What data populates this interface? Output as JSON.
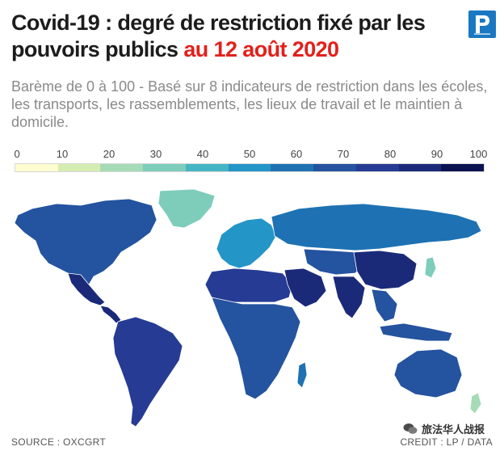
{
  "header": {
    "title_main": "Covid-19 : degré de restriction fixé par les pouvoirs publics",
    "title_date": "au 12 août 2020",
    "subtitle": "Barème de 0 à 100 - Basé sur 8 indicateurs de restriction dans les écoles, les transports, les rassemblements, les lieux de travail et le maintien à domicile."
  },
  "legend": {
    "ticks": [
      "0",
      "10",
      "20",
      "30",
      "40",
      "50",
      "60",
      "70",
      "80",
      "90",
      "100"
    ],
    "colors": [
      "#fdfdd0",
      "#d6edb1",
      "#a6dbb7",
      "#7ecdbb",
      "#45b5c4",
      "#2395c6",
      "#1e72b3",
      "#24539f",
      "#263b93",
      "#1b2a78",
      "#0b1350"
    ]
  },
  "colors": {
    "title_accent": "#e3201b",
    "logo_blue": "#1a78c2",
    "ocean": "#ffffff",
    "no_data": "#e8e8e8"
  },
  "footer": {
    "source": "SOURCE : OXCGRT",
    "credit": "CREDIT : LP / DATA",
    "watermark": "旅法华人战报"
  },
  "map": {
    "type": "choropleth",
    "scale": [
      0,
      100
    ],
    "regions": [
      {
        "name": "north-america",
        "value": 72
      },
      {
        "name": "greenland",
        "value": 35
      },
      {
        "name": "mexico",
        "value": 82
      },
      {
        "name": "central-america",
        "value": 88
      },
      {
        "name": "south-america",
        "value": 80
      },
      {
        "name": "europe",
        "value": 50
      },
      {
        "name": "russia",
        "value": 62
      },
      {
        "name": "north-africa",
        "value": 78
      },
      {
        "name": "sub-saharan-africa",
        "value": 72
      },
      {
        "name": "madagascar",
        "value": 62
      },
      {
        "name": "middle-east",
        "value": 82
      },
      {
        "name": "central-asia",
        "value": 66
      },
      {
        "name": "india",
        "value": 90
      },
      {
        "name": "china",
        "value": 86
      },
      {
        "name": "southeast-asia",
        "value": 70
      },
      {
        "name": "indonesia",
        "value": 72
      },
      {
        "name": "japan",
        "value": 35
      },
      {
        "name": "australia",
        "value": 68
      },
      {
        "name": "new-zealand",
        "value": 22
      }
    ]
  }
}
